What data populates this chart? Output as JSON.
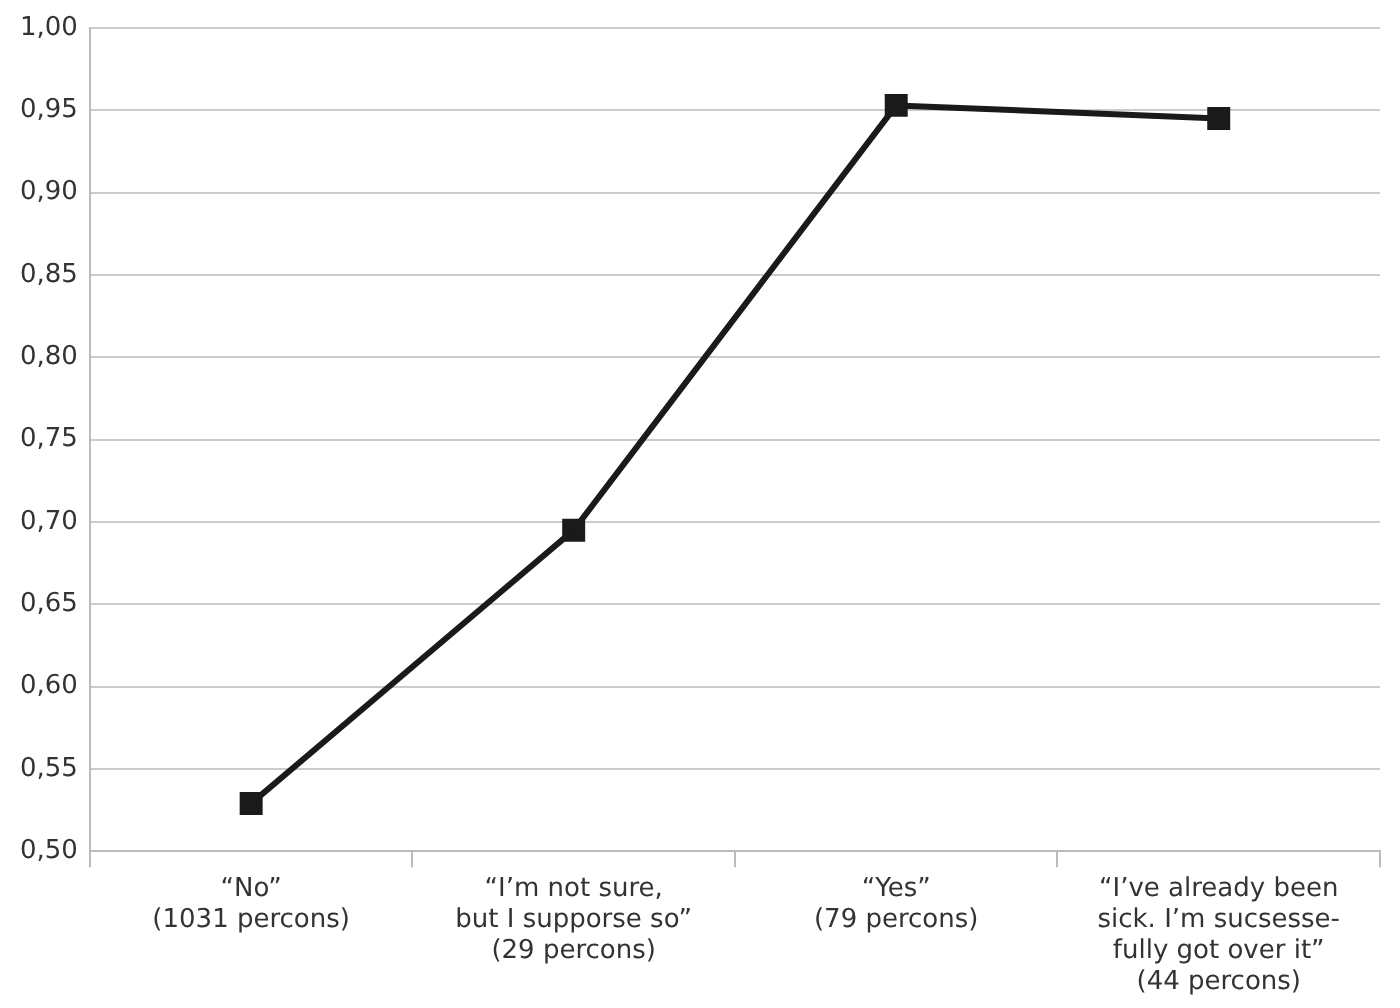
{
  "chart_data": {
    "type": "line",
    "categories": [
      "“No”\n(1031 percons)",
      "“I’m not sure,\nbut I supporse so”\n(29 percons)",
      "“Yes”\n(79 percons)",
      "“I’ve already been\nsick. I’m sucsesse-\nfully got over it”\n(44 percons)"
    ],
    "series": [
      {
        "color": "#1a1a1a",
        "values": [
          0.529,
          0.695,
          0.953,
          0.945
        ]
      }
    ],
    "ylim": [
      0.5,
      1.0
    ],
    "yticks": [
      {
        "value": 0.5,
        "label": "0,50"
      },
      {
        "value": 0.55,
        "label": "0,55"
      },
      {
        "value": 0.6,
        "label": "0,60"
      },
      {
        "value": 0.65,
        "label": "0,65"
      },
      {
        "value": 0.7,
        "label": "0,70"
      },
      {
        "value": 0.75,
        "label": "0,75"
      },
      {
        "value": 0.8,
        "label": "0,80"
      },
      {
        "value": 0.85,
        "label": "0,85"
      },
      {
        "value": 0.9,
        "label": "0,90"
      },
      {
        "value": 0.95,
        "label": "0,95"
      },
      {
        "value": 1.0,
        "label": "1,00"
      }
    ],
    "grid": "y",
    "legend": false,
    "marker": "square",
    "line_style": "solid"
  }
}
